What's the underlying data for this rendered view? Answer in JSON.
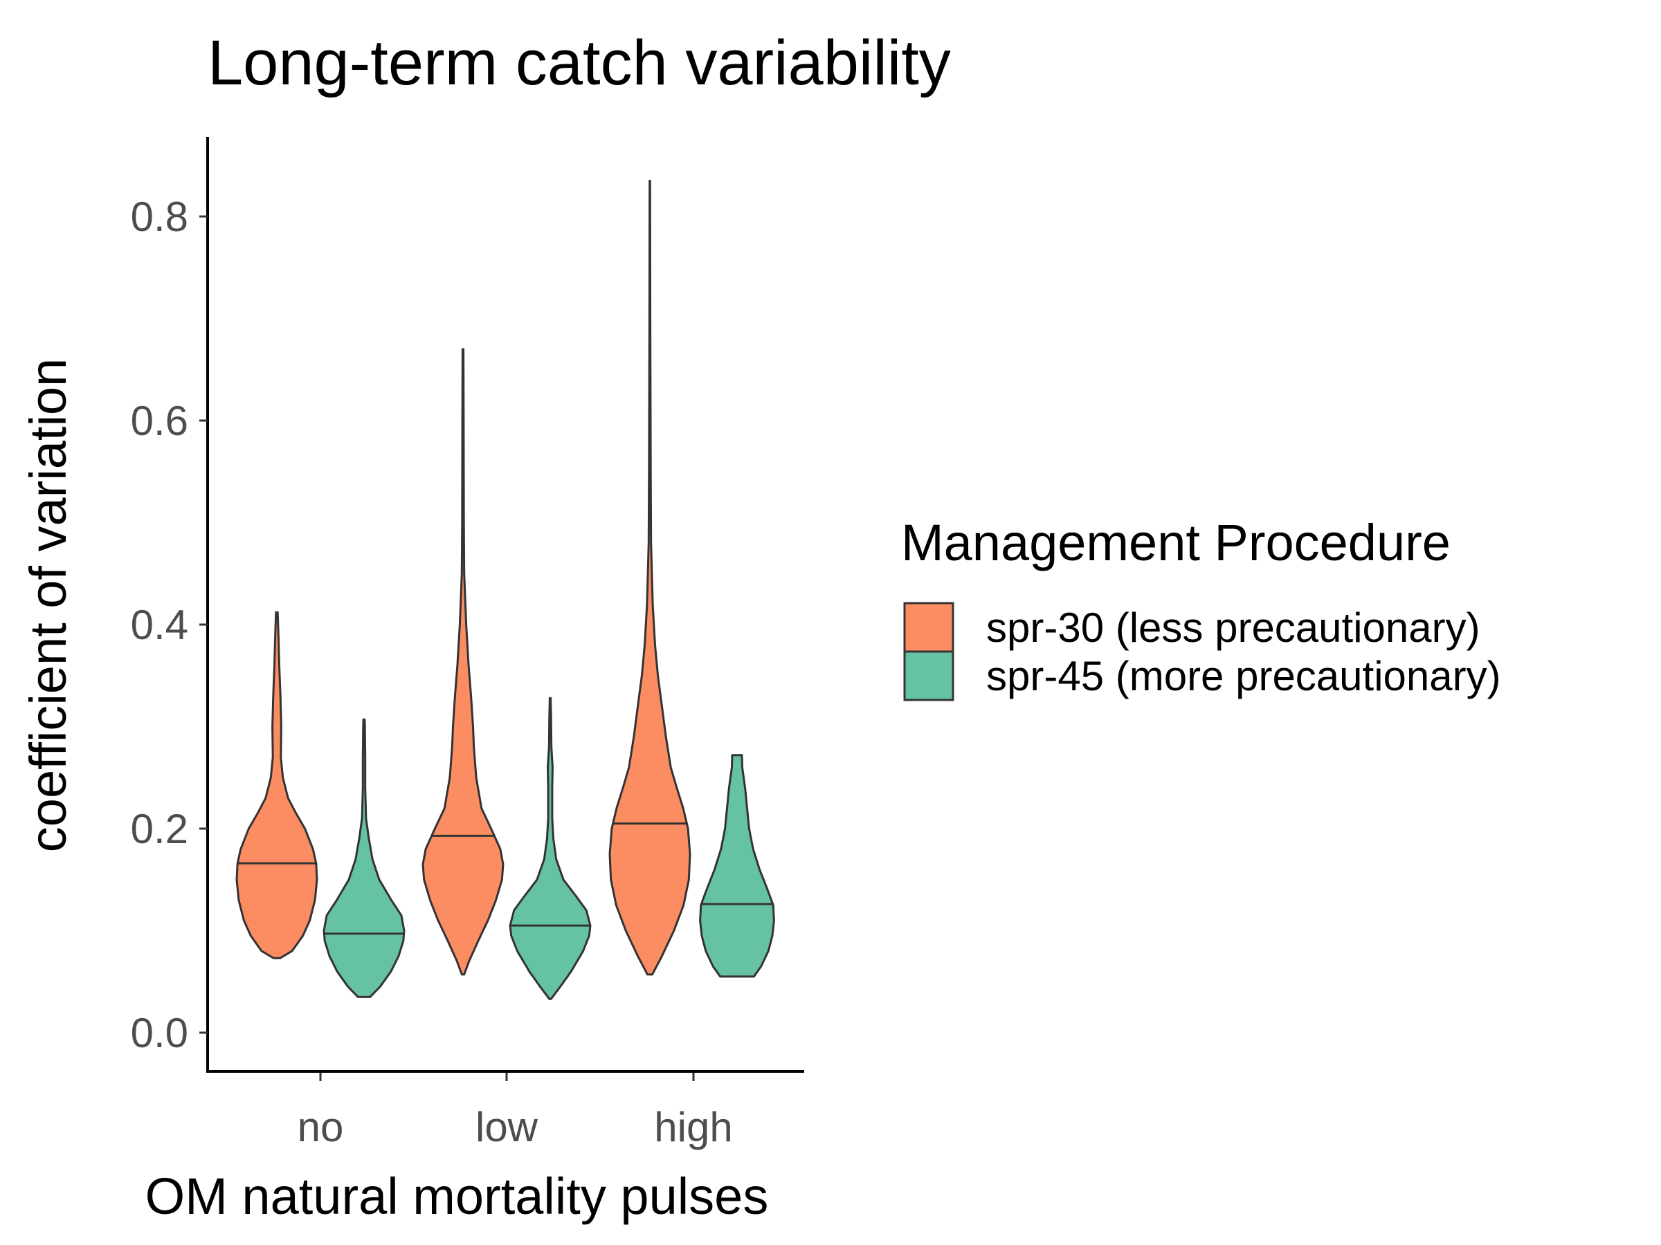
{
  "chart_data": {
    "type": "violin",
    "title": "Long-term catch variability",
    "xlabel": "OM natural mortality pulses",
    "ylabel": "coefficient of variation",
    "categories": [
      "no",
      "low",
      "high"
    ],
    "y_ticks": [
      "0.0",
      "0.2",
      "0.4",
      "0.6",
      "0.8"
    ],
    "ylim": [
      -0.04,
      0.88
    ],
    "legend": {
      "title": "Management Procedure",
      "position": "right"
    },
    "series": [
      {
        "name": "spr-30 (less precautionary)",
        "color": "#FC8D62",
        "violins": [
          {
            "category": "no",
            "median": 0.166,
            "profile": [
              [
                0.073,
                0.08
              ],
              [
                0.08,
                0.38
              ],
              [
                0.095,
                0.65
              ],
              [
                0.11,
                0.82
              ],
              [
                0.13,
                0.95
              ],
              [
                0.15,
                1.0
              ],
              [
                0.166,
                0.98
              ],
              [
                0.18,
                0.9
              ],
              [
                0.2,
                0.7
              ],
              [
                0.215,
                0.48
              ],
              [
                0.23,
                0.28
              ],
              [
                0.25,
                0.15
              ],
              [
                0.27,
                0.1
              ],
              [
                0.3,
                0.11
              ],
              [
                0.33,
                0.09
              ],
              [
                0.36,
                0.06
              ],
              [
                0.39,
                0.04
              ],
              [
                0.412,
                0.02
              ]
            ]
          },
          {
            "category": "low",
            "median": 0.193,
            "profile": [
              [
                0.057,
                0.03
              ],
              [
                0.07,
                0.15
              ],
              [
                0.09,
                0.38
              ],
              [
                0.11,
                0.62
              ],
              [
                0.13,
                0.82
              ],
              [
                0.15,
                0.97
              ],
              [
                0.165,
                1.0
              ],
              [
                0.18,
                0.93
              ],
              [
                0.2,
                0.7
              ],
              [
                0.22,
                0.46
              ],
              [
                0.25,
                0.33
              ],
              [
                0.28,
                0.27
              ],
              [
                0.3,
                0.25
              ],
              [
                0.33,
                0.2
              ],
              [
                0.36,
                0.14
              ],
              [
                0.4,
                0.08
              ],
              [
                0.45,
                0.03
              ],
              [
                0.5,
                0.02
              ],
              [
                0.6,
                0.015
              ],
              [
                0.67,
                0.01
              ]
            ]
          },
          {
            "category": "high",
            "median": 0.205,
            "profile": [
              [
                0.057,
                0.06
              ],
              [
                0.075,
                0.3
              ],
              [
                0.1,
                0.6
              ],
              [
                0.125,
                0.84
              ],
              [
                0.15,
                0.97
              ],
              [
                0.175,
                1.0
              ],
              [
                0.2,
                0.95
              ],
              [
                0.22,
                0.83
              ],
              [
                0.24,
                0.67
              ],
              [
                0.26,
                0.52
              ],
              [
                0.29,
                0.4
              ],
              [
                0.32,
                0.3
              ],
              [
                0.35,
                0.2
              ],
              [
                0.38,
                0.13
              ],
              [
                0.42,
                0.07
              ],
              [
                0.48,
                0.03
              ],
              [
                0.55,
                0.02
              ],
              [
                0.7,
                0.01
              ],
              [
                0.835,
                0.005
              ]
            ]
          }
        ]
      },
      {
        "name": "spr-45 (more precautionary)",
        "color": "#66C2A5",
        "violins": [
          {
            "category": "no",
            "median": 0.097,
            "profile": [
              [
                0.035,
                0.15
              ],
              [
                0.045,
                0.4
              ],
              [
                0.06,
                0.67
              ],
              [
                0.075,
                0.86
              ],
              [
                0.09,
                0.98
              ],
              [
                0.1,
                1.0
              ],
              [
                0.115,
                0.93
              ],
              [
                0.13,
                0.68
              ],
              [
                0.15,
                0.38
              ],
              [
                0.17,
                0.21
              ],
              [
                0.19,
                0.12
              ],
              [
                0.21,
                0.05
              ],
              [
                0.24,
                0.03
              ],
              [
                0.27,
                0.03
              ],
              [
                0.3,
                0.02
              ],
              [
                0.307,
                0.015
              ]
            ]
          },
          {
            "category": "low",
            "median": 0.105,
            "profile": [
              [
                0.033,
                0.02
              ],
              [
                0.045,
                0.25
              ],
              [
                0.06,
                0.52
              ],
              [
                0.08,
                0.82
              ],
              [
                0.095,
                0.97
              ],
              [
                0.105,
                1.0
              ],
              [
                0.12,
                0.9
              ],
              [
                0.135,
                0.62
              ],
              [
                0.15,
                0.33
              ],
              [
                0.17,
                0.15
              ],
              [
                0.19,
                0.08
              ],
              [
                0.21,
                0.05
              ],
              [
                0.24,
                0.05
              ],
              [
                0.26,
                0.06
              ],
              [
                0.28,
                0.03
              ],
              [
                0.31,
                0.02
              ],
              [
                0.328,
                0.01
              ]
            ]
          },
          {
            "category": "high",
            "median": 0.126,
            "profile": [
              [
                0.055,
                0.42
              ],
              [
                0.065,
                0.6
              ],
              [
                0.08,
                0.78
              ],
              [
                0.095,
                0.88
              ],
              [
                0.11,
                0.92
              ],
              [
                0.125,
                0.9
              ],
              [
                0.14,
                0.76
              ],
              [
                0.16,
                0.56
              ],
              [
                0.18,
                0.4
              ],
              [
                0.2,
                0.3
              ],
              [
                0.22,
                0.25
              ],
              [
                0.24,
                0.2
              ],
              [
                0.26,
                0.13
              ],
              [
                0.272,
                0.12
              ]
            ]
          }
        ]
      }
    ]
  }
}
